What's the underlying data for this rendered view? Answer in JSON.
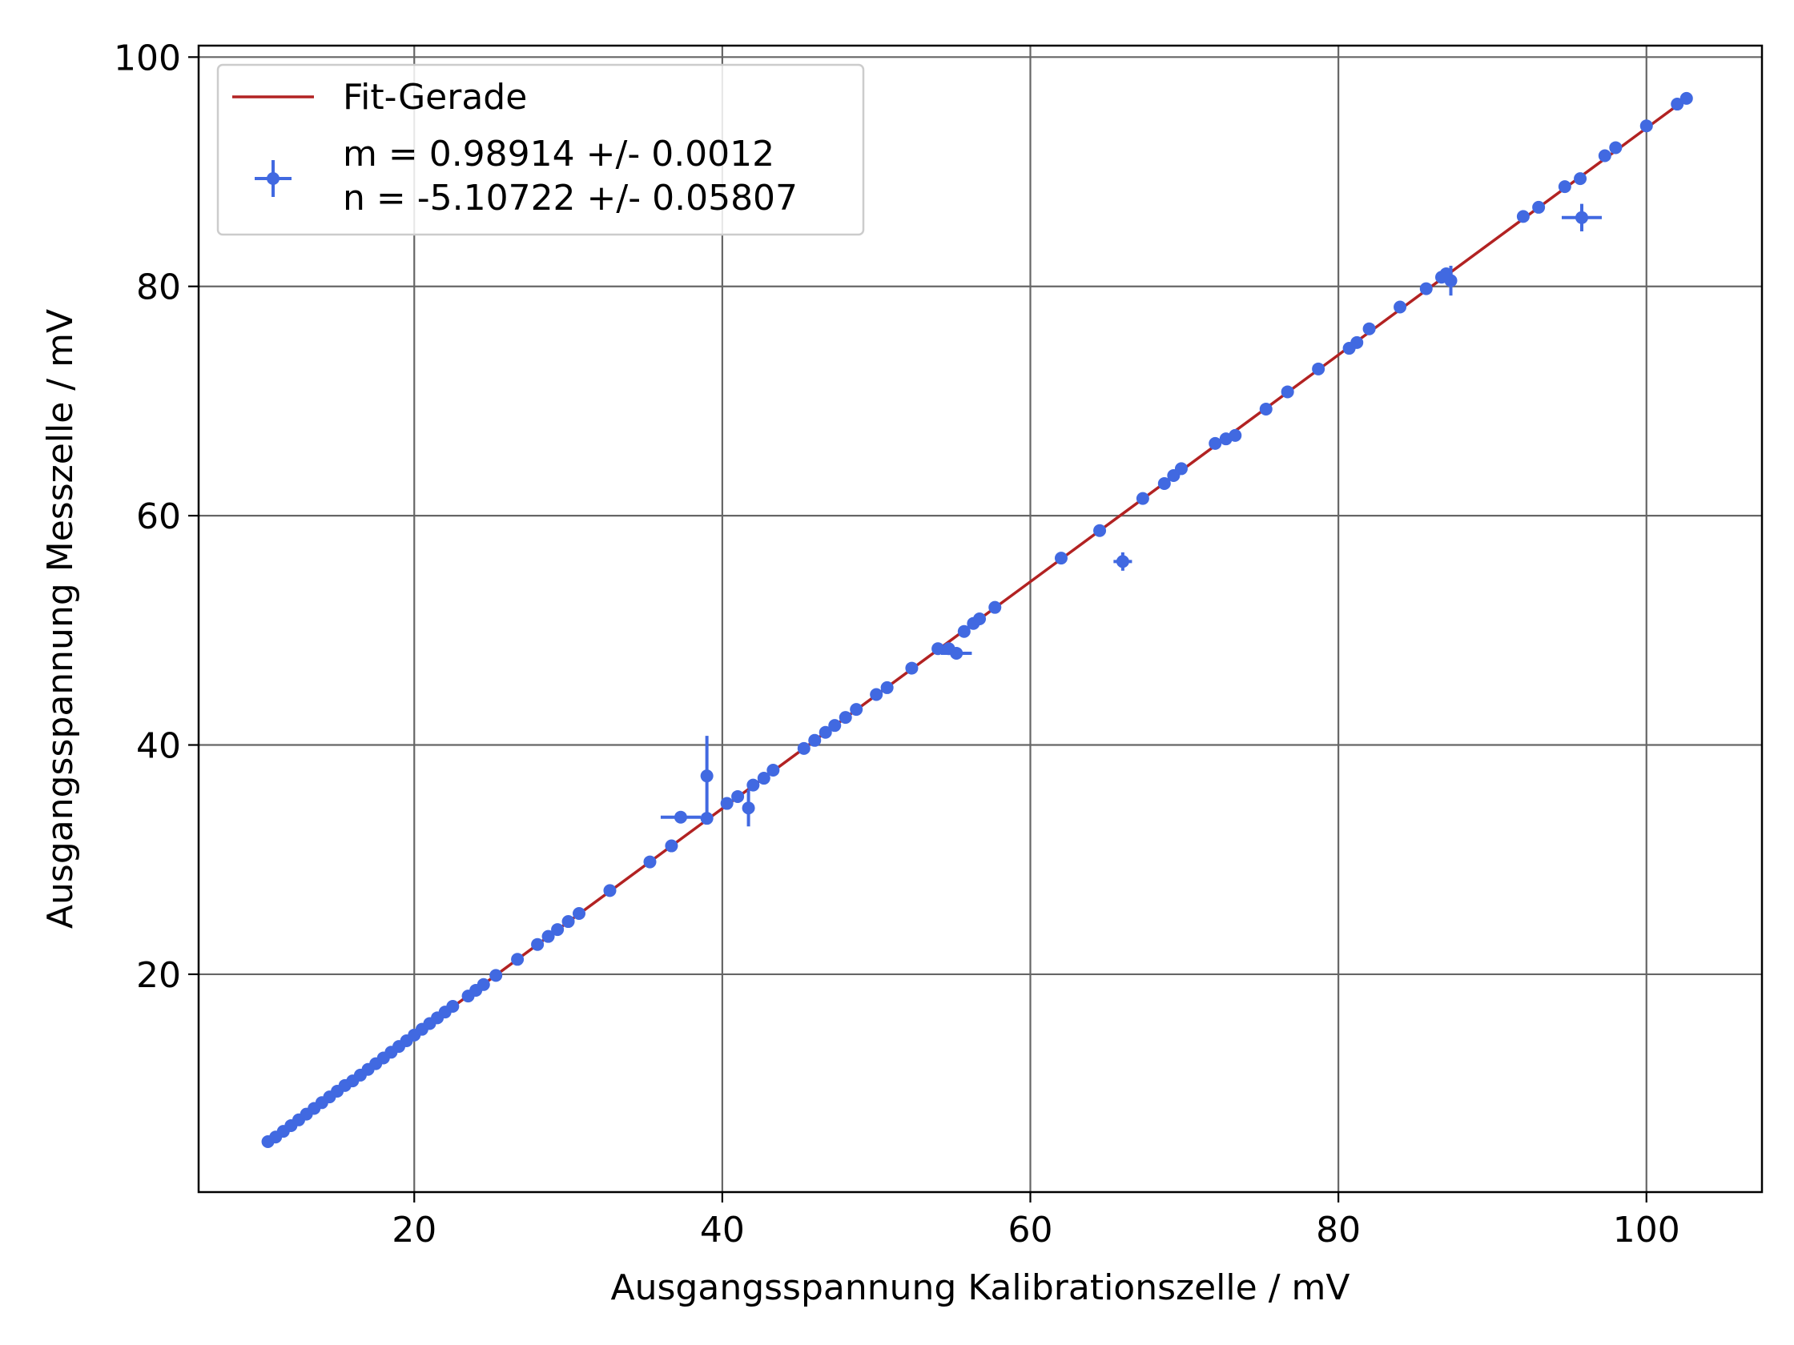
{
  "chart_data": {
    "type": "scatter",
    "xlabel": "Ausgangsspannung Kalibrationszelle / mV",
    "ylabel": "Ausgangsspannung Messzelle / mV",
    "xlim": [
      6.0,
      107.5
    ],
    "ylim": [
      1.0,
      101.0
    ],
    "x_ticks": [
      20,
      40,
      60,
      80,
      100
    ],
    "y_ticks": [
      20,
      40,
      60,
      80,
      100
    ],
    "grid": true,
    "legend_position": "top-left",
    "fit_line": {
      "label": "Fit-Gerade",
      "color": "#b22222",
      "x_range": [
        10.5,
        102.5
      ],
      "slope": 0.98914,
      "intercept": -5.10722
    },
    "legend": {
      "fit_label": "Fit-Gerade",
      "data_label_line1": "m = 0.98914 +/- 0.0012",
      "data_label_line2": "n = -5.10722 +/- 0.05807"
    },
    "series": [
      {
        "color": "#4169e1",
        "points": [
          {
            "x": 10.5,
            "y": 5.4
          },
          {
            "x": 11.0,
            "y": 5.8
          },
          {
            "x": 11.5,
            "y": 6.3
          },
          {
            "x": 12.0,
            "y": 6.8
          },
          {
            "x": 12.5,
            "y": 7.3
          },
          {
            "x": 13.0,
            "y": 7.8
          },
          {
            "x": 13.5,
            "y": 8.3
          },
          {
            "x": 14.0,
            "y": 8.8
          },
          {
            "x": 14.5,
            "y": 9.3
          },
          {
            "x": 15.0,
            "y": 9.8
          },
          {
            "x": 15.5,
            "y": 10.3
          },
          {
            "x": 16.0,
            "y": 10.7
          },
          {
            "x": 16.5,
            "y": 11.2
          },
          {
            "x": 17.0,
            "y": 11.7
          },
          {
            "x": 17.5,
            "y": 12.2
          },
          {
            "x": 18.0,
            "y": 12.7
          },
          {
            "x": 18.5,
            "y": 13.2
          },
          {
            "x": 19.0,
            "y": 13.7
          },
          {
            "x": 19.5,
            "y": 14.2
          },
          {
            "x": 20.0,
            "y": 14.7
          },
          {
            "x": 20.5,
            "y": 15.2
          },
          {
            "x": 21.0,
            "y": 15.7
          },
          {
            "x": 21.5,
            "y": 16.2
          },
          {
            "x": 22.0,
            "y": 16.7
          },
          {
            "x": 22.5,
            "y": 17.2
          },
          {
            "x": 23.5,
            "y": 18.1
          },
          {
            "x": 24.0,
            "y": 18.6
          },
          {
            "x": 24.5,
            "y": 19.1
          },
          {
            "x": 25.3,
            "y": 19.9
          },
          {
            "x": 26.7,
            "y": 21.3
          },
          {
            "x": 28.0,
            "y": 22.6
          },
          {
            "x": 28.7,
            "y": 23.3
          },
          {
            "x": 29.3,
            "y": 23.9
          },
          {
            "x": 30.0,
            "y": 24.6
          },
          {
            "x": 30.7,
            "y": 25.3
          },
          {
            "x": 32.7,
            "y": 27.3
          },
          {
            "x": 35.3,
            "y": 29.8
          },
          {
            "x": 36.7,
            "y": 31.2
          },
          {
            "x": 37.3,
            "y": 33.7,
            "xerr": 1.3
          },
          {
            "x": 39.0,
            "y": 37.3,
            "yerr": 3.5
          },
          {
            "x": 39.0,
            "y": 33.6
          },
          {
            "x": 40.3,
            "y": 34.9
          },
          {
            "x": 41.0,
            "y": 35.5
          },
          {
            "x": 41.7,
            "y": 34.5,
            "yerr": 1.6
          },
          {
            "x": 42.0,
            "y": 36.5
          },
          {
            "x": 42.7,
            "y": 37.1
          },
          {
            "x": 43.3,
            "y": 37.8
          },
          {
            "x": 45.3,
            "y": 39.7
          },
          {
            "x": 46.0,
            "y": 40.4
          },
          {
            "x": 46.7,
            "y": 41.1
          },
          {
            "x": 47.3,
            "y": 41.7
          },
          {
            "x": 48.0,
            "y": 42.4
          },
          {
            "x": 48.7,
            "y": 43.1
          },
          {
            "x": 50.0,
            "y": 44.4
          },
          {
            "x": 50.7,
            "y": 45.0
          },
          {
            "x": 52.3,
            "y": 46.7
          },
          {
            "x": 54.0,
            "y": 48.4
          },
          {
            "x": 54.7,
            "y": 48.4
          },
          {
            "x": 55.2,
            "y": 48.0,
            "xerr": 1.0
          },
          {
            "x": 55.7,
            "y": 49.9
          },
          {
            "x": 56.3,
            "y": 50.6
          },
          {
            "x": 56.7,
            "y": 51.0
          },
          {
            "x": 57.7,
            "y": 52.0
          },
          {
            "x": 62.0,
            "y": 56.3
          },
          {
            "x": 64.5,
            "y": 58.7
          },
          {
            "x": 66.0,
            "y": 56.0,
            "xerr": 0.6,
            "yerr": 0.8
          },
          {
            "x": 67.3,
            "y": 61.5
          },
          {
            "x": 68.7,
            "y": 62.8
          },
          {
            "x": 69.3,
            "y": 63.5
          },
          {
            "x": 69.8,
            "y": 64.1
          },
          {
            "x": 72.0,
            "y": 66.3
          },
          {
            "x": 72.7,
            "y": 66.7
          },
          {
            "x": 73.3,
            "y": 67.0
          },
          {
            "x": 75.3,
            "y": 69.3
          },
          {
            "x": 76.7,
            "y": 70.8
          },
          {
            "x": 78.7,
            "y": 72.8
          },
          {
            "x": 80.7,
            "y": 74.6
          },
          {
            "x": 81.2,
            "y": 75.1
          },
          {
            "x": 82.0,
            "y": 76.3
          },
          {
            "x": 84.0,
            "y": 78.2
          },
          {
            "x": 85.7,
            "y": 79.8
          },
          {
            "x": 86.7,
            "y": 80.8
          },
          {
            "x": 87.0,
            "y": 81.1
          },
          {
            "x": 87.3,
            "y": 80.5,
            "yerr": 1.3
          },
          {
            "x": 92.0,
            "y": 86.1
          },
          {
            "x": 93.0,
            "y": 86.9
          },
          {
            "x": 94.7,
            "y": 88.7
          },
          {
            "x": 95.7,
            "y": 89.4
          },
          {
            "x": 95.8,
            "y": 86.0,
            "xerr": 1.3,
            "yerr": 1.2
          },
          {
            "x": 97.3,
            "y": 91.4
          },
          {
            "x": 98.0,
            "y": 92.1
          },
          {
            "x": 100.0,
            "y": 94.0
          },
          {
            "x": 102.0,
            "y": 95.9
          },
          {
            "x": 102.6,
            "y": 96.4
          }
        ]
      }
    ]
  }
}
